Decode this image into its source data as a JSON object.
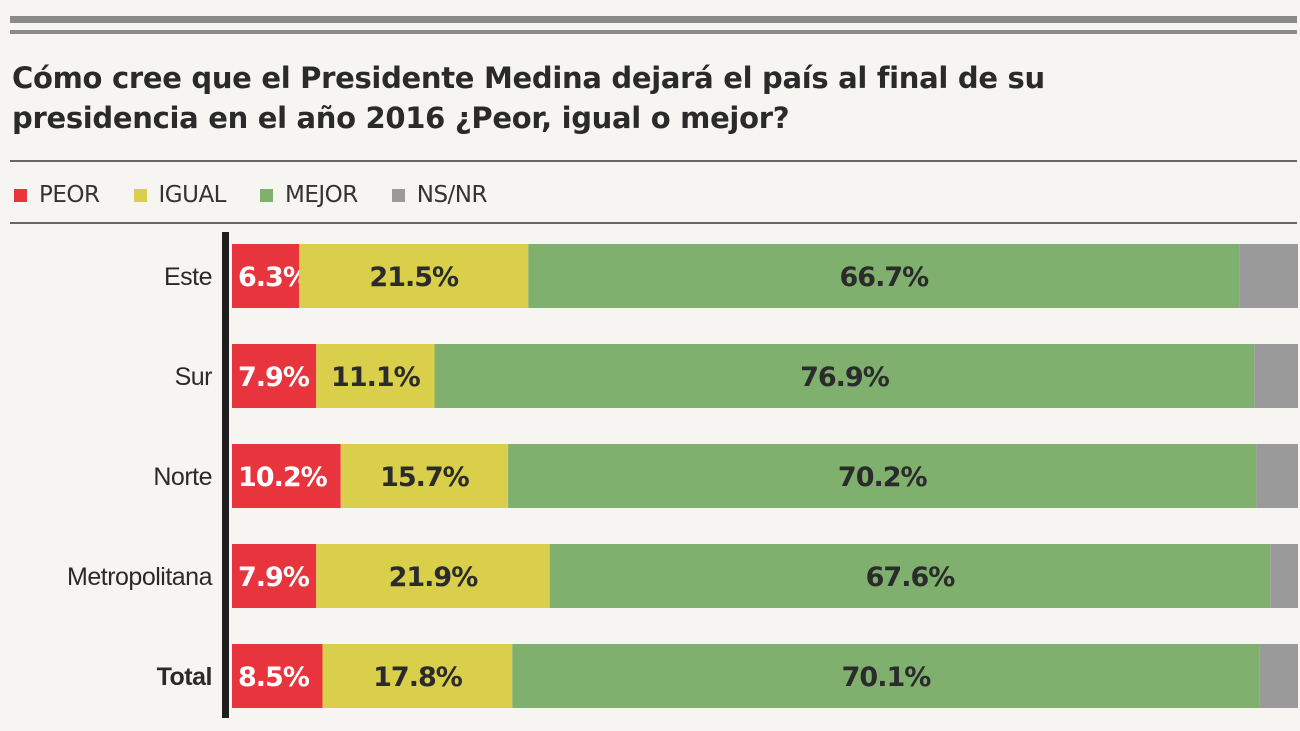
{
  "chart_data": {
    "type": "bar",
    "orientation": "horizontal-stacked",
    "title": "Cómo cree que el Presidente Medina dejará el país al final  de su presidencia en el año 2016 ¿Peor, igual o mejor?",
    "categories": [
      "Este",
      "Sur",
      "Norte",
      "Metropolitana",
      "Total"
    ],
    "series": [
      {
        "name": "PEOR",
        "color": "#e8343c",
        "values": [
          6.3,
          7.9,
          10.2,
          7.9,
          8.5
        ],
        "labels": [
          "6.3%",
          "7.9%",
          "10.2%",
          "7.9%",
          "8.5%"
        ]
      },
      {
        "name": "IGUAL",
        "color": "#d9cf4a",
        "values": [
          21.5,
          11.1,
          15.7,
          21.9,
          17.8
        ],
        "labels": [
          "21.5%",
          "11.1%",
          "15.7%",
          "21.9%",
          "17.8%"
        ]
      },
      {
        "name": "MEJOR",
        "color": "#7fb06e",
        "values": [
          66.7,
          76.9,
          70.2,
          67.6,
          70.1
        ],
        "labels": [
          "66.7%",
          "76.9%",
          "70.2%",
          "67.6%",
          "70.1%"
        ]
      },
      {
        "name": "NS/NR",
        "color": "#9a9a9a",
        "values": [
          5.5,
          4.1,
          3.9,
          2.6,
          3.6
        ],
        "labels": [
          "",
          "",
          "",
          "",
          ""
        ]
      }
    ],
    "xlim": [
      0,
      100
    ],
    "legend": "top-left",
    "grid": false
  }
}
